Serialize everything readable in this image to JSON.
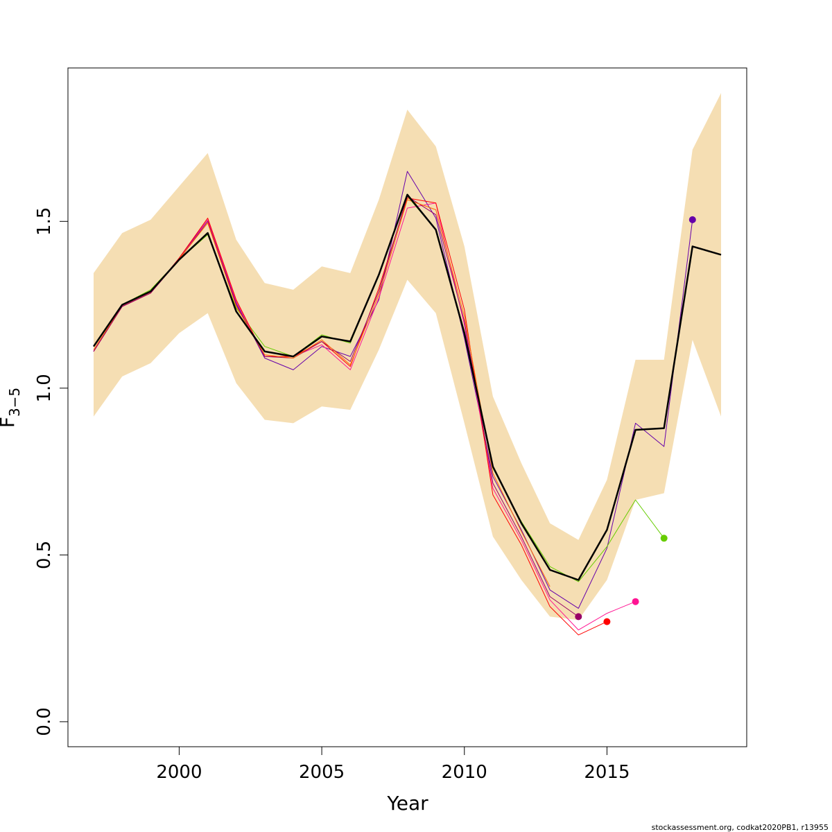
{
  "chart_data": {
    "type": "line",
    "xlabel": "Year",
    "ylabel": "F",
    "ylabel_subscript": "3−5",
    "xlim": [
      1996.1,
      2019.9
    ],
    "ylim": [
      -0.075,
      1.96
    ],
    "x_ticks": [
      2000,
      2005,
      2010,
      2015
    ],
    "x_tick_labels": [
      "2000",
      "2005",
      "2010",
      "2015"
    ],
    "y_ticks": [
      0,
      0.5,
      1.0,
      1.5
    ],
    "y_tick_labels": [
      "0.0",
      "0.5",
      "1.0",
      "1.5"
    ],
    "grid": false,
    "legend": "none",
    "credit": "stockassessment.org, codkat2020PB1, r13955",
    "band": {
      "color": "#F5DEB3",
      "x": [
        1997,
        1998,
        1999,
        2000,
        2001,
        2002,
        2003,
        2004,
        2005,
        2006,
        2007,
        2008,
        2009,
        2010,
        2011,
        2012,
        2013,
        2014,
        2015,
        2016,
        2017,
        2018,
        2019
      ],
      "upper": [
        1.345,
        1.465,
        1.505,
        1.605,
        1.705,
        1.445,
        1.315,
        1.295,
        1.365,
        1.345,
        1.565,
        1.835,
        1.725,
        1.425,
        0.975,
        0.775,
        0.595,
        0.545,
        0.725,
        1.085,
        1.085,
        1.715,
        1.885
      ],
      "lower": [
        0.915,
        1.035,
        1.075,
        1.165,
        1.225,
        1.015,
        0.905,
        0.895,
        0.945,
        0.935,
        1.115,
        1.325,
        1.225,
        0.895,
        0.555,
        0.425,
        0.315,
        0.305,
        0.425,
        0.665,
        0.685,
        1.145,
        0.915
      ]
    },
    "series": [
      {
        "color": "#000000",
        "width": 2.5,
        "x": [
          1997,
          1998,
          1999,
          2000,
          2001,
          2002,
          2003,
          2004,
          2005,
          2006,
          2007,
          2008,
          2009,
          2010,
          2011,
          2012,
          2013,
          2014,
          2015,
          2016,
          2017,
          2018,
          2019
        ],
        "y": [
          1.125,
          1.25,
          1.29,
          1.385,
          1.465,
          1.23,
          1.11,
          1.095,
          1.155,
          1.14,
          1.34,
          1.58,
          1.475,
          1.165,
          0.765,
          0.595,
          0.455,
          0.425,
          0.575,
          0.875,
          0.88,
          1.425,
          1.4
        ]
      },
      {
        "color": "#6600AA",
        "width": 1,
        "end_point": true,
        "x": [
          1997,
          1998,
          1999,
          2000,
          2001,
          2002,
          2003,
          2004,
          2005,
          2006,
          2007,
          2008,
          2009,
          2010,
          2011,
          2012,
          2013,
          2014,
          2015,
          2016,
          2017,
          2018
        ],
        "y": [
          1.11,
          1.245,
          1.285,
          1.39,
          1.505,
          1.255,
          1.09,
          1.055,
          1.125,
          1.095,
          1.265,
          1.65,
          1.51,
          1.15,
          0.735,
          0.575,
          0.395,
          0.34,
          0.52,
          0.895,
          0.825,
          1.505
        ]
      },
      {
        "color": "#66CC00",
        "width": 1,
        "end_point": true,
        "x": [
          1997,
          1998,
          1999,
          2000,
          2001,
          2002,
          2003,
          2004,
          2005,
          2006,
          2007,
          2008,
          2009,
          2010,
          2011,
          2012,
          2013,
          2014,
          2015,
          2016,
          2017
        ],
        "y": [
          1.125,
          1.25,
          1.295,
          1.385,
          1.46,
          1.24,
          1.125,
          1.095,
          1.16,
          1.135,
          1.34,
          1.575,
          1.475,
          1.17,
          0.76,
          0.6,
          0.465,
          0.42,
          0.525,
          0.665,
          0.55
        ]
      },
      {
        "color": "#FF1493",
        "width": 1,
        "end_point": true,
        "x": [
          1997,
          1998,
          1999,
          2000,
          2001,
          2002,
          2003,
          2004,
          2005,
          2006,
          2007,
          2008,
          2009,
          2010,
          2011,
          2012,
          2013,
          2014,
          2015,
          2016
        ],
        "y": [
          1.11,
          1.245,
          1.285,
          1.385,
          1.505,
          1.26,
          1.095,
          1.095,
          1.13,
          1.055,
          1.27,
          1.54,
          1.555,
          1.19,
          0.7,
          0.545,
          0.365,
          0.275,
          0.325,
          0.36
        ]
      },
      {
        "color": "#FF0000",
        "width": 1,
        "end_point": true,
        "x": [
          1997,
          1998,
          1999,
          2000,
          2001,
          2002,
          2003,
          2004,
          2005,
          2006,
          2007,
          2008,
          2009,
          2010,
          2011,
          2012,
          2013,
          2014,
          2015
        ],
        "y": [
          1.11,
          1.245,
          1.285,
          1.39,
          1.51,
          1.265,
          1.095,
          1.095,
          1.14,
          1.065,
          1.3,
          1.57,
          1.555,
          1.235,
          0.68,
          0.53,
          0.345,
          0.26,
          0.3
        ]
      },
      {
        "color": "#990066",
        "width": 1,
        "end_point": true,
        "x": [
          1997,
          1998,
          1999,
          2000,
          2001,
          2002,
          2003,
          2004,
          2005,
          2006,
          2007,
          2008,
          2009,
          2010,
          2011,
          2012,
          2013,
          2014
        ],
        "y": [
          1.11,
          1.245,
          1.285,
          1.385,
          1.5,
          1.25,
          1.095,
          1.09,
          1.14,
          1.08,
          1.29,
          1.575,
          1.52,
          1.2,
          0.715,
          0.555,
          0.375,
          0.315
        ]
      },
      {
        "color": "#FF6600",
        "width": 1,
        "end_point": false,
        "x": [
          1997,
          1998,
          1999,
          2000,
          2001,
          2002,
          2003,
          2004,
          2005,
          2006,
          2007,
          2008,
          2009,
          2010,
          2011,
          2012,
          2013
        ],
        "y": [
          1.115,
          1.248,
          1.288,
          1.387,
          1.495,
          1.245,
          1.1,
          1.09,
          1.145,
          1.07,
          1.28,
          1.565,
          1.535,
          1.215,
          0.745,
          0.57,
          0.405
        ]
      }
    ]
  }
}
